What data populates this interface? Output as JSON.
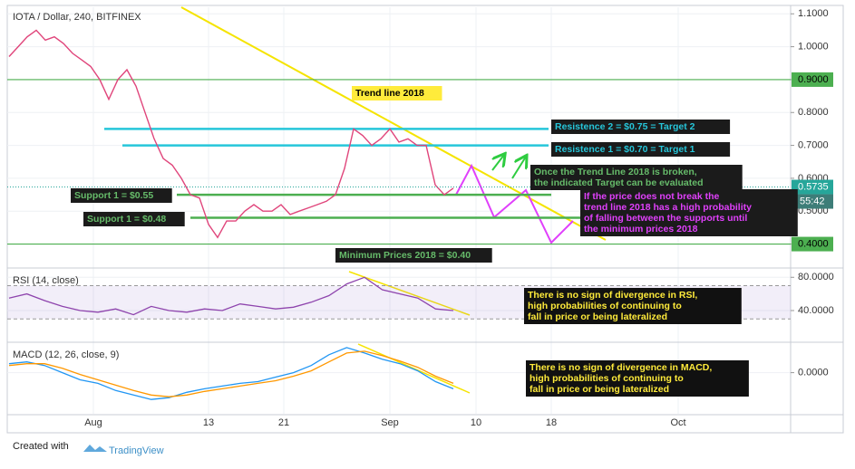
{
  "header": {
    "title": "IOTA / Dollar, 240, BITFINEX"
  },
  "chart_data": [
    {
      "type": "line",
      "color": "#e0457b",
      "values": [
        0.97,
        1.0,
        1.03,
        1.05,
        1.02,
        1.03,
        1.01,
        0.98,
        0.96,
        0.94,
        0.9,
        0.84,
        0.9,
        0.93,
        0.88,
        0.8,
        0.72,
        0.66,
        0.64,
        0.6,
        0.55,
        0.54,
        0.46,
        0.42,
        0.47,
        0.47,
        0.5,
        0.52,
        0.5,
        0.5,
        0.52,
        0.49,
        0.5,
        0.51,
        0.52,
        0.53,
        0.55,
        0.63,
        0.75,
        0.73,
        0.7,
        0.72,
        0.75,
        0.71,
        0.72,
        0.7,
        0.7,
        0.58,
        0.55,
        0.57
      ],
      "x_labels": [
        "Aug",
        "13",
        "21",
        "Sep",
        "10",
        "18",
        "Oct"
      ],
      "ylim": [
        0.33,
        1.12
      ],
      "yticks": [
        {
          "value": 1.1,
          "label": "1.1000"
        },
        {
          "value": 1.0,
          "label": "1.0000"
        },
        {
          "value": 0.9,
          "label": "0.9000"
        },
        {
          "value": 0.8,
          "label": "0.8000"
        },
        {
          "value": 0.7,
          "label": "0.7000"
        },
        {
          "value": 0.6,
          "label": "0.6000"
        },
        {
          "value": 0.5,
          "label": "0.5000"
        },
        {
          "value": 0.4,
          "label": "0.4000"
        }
      ],
      "grid": true,
      "levels": [
        {
          "value": 0.9,
          "color": "#4caf50",
          "tag": true
        },
        {
          "value": 0.75,
          "color": "#26c6da"
        },
        {
          "value": 0.7,
          "color": "#26c6da"
        },
        {
          "value": 0.55,
          "color": "#4caf50"
        },
        {
          "value": 0.48,
          "color": "#4caf50"
        },
        {
          "value": 0.4,
          "color": "#4caf50",
          "tag": true
        }
      ],
      "last_price": {
        "value": 0.5735,
        "label": "0.5735"
      },
      "countdown": "55:42",
      "annotations": [
        {
          "lines": [
            "Trend line 2018"
          ],
          "color": "#000000",
          "box": "#ffeb3b"
        },
        {
          "lines": [
            "Resistence 2 = $0.75 = Target 2"
          ],
          "color": "#26c6da",
          "box": "#1b1b1b"
        },
        {
          "lines": [
            "Resistence 1 = $0.70 = Target 1"
          ],
          "color": "#26c6da",
          "box": "#1b1b1b"
        },
        {
          "lines": [
            "Once the Trend Line 2018 is broken,",
            "the indicated Target can be evaluated"
          ],
          "color": "#66bb6a",
          "box": "#1b1b1b"
        },
        {
          "lines": [
            "Support 1 = $0.55"
          ],
          "color": "#66bb6a",
          "box": "#1b1b1b"
        },
        {
          "lines": [
            "Support 1 = $0.48"
          ],
          "color": "#66bb6a",
          "box": "#1b1b1b"
        },
        {
          "lines": [
            "If the price does not break the",
            "trend line 2018 has a high probability",
            "of falling between the supports until",
            "the minimum prices 2018"
          ],
          "color": "#e040fb",
          "box": "#1b1b1b"
        },
        {
          "lines": [
            "Minimum Prices 2018 = $0.40"
          ],
          "color": "#66bb6a",
          "box": "#1b1b1b"
        }
      ]
    },
    {
      "type": "line",
      "title": "RSI (14, close)",
      "color": "#8e44ad",
      "values": [
        55,
        60,
        52,
        45,
        40,
        38,
        42,
        35,
        45,
        40,
        38,
        42,
        40,
        48,
        45,
        42,
        44,
        50,
        58,
        72,
        80,
        65,
        60,
        55,
        42,
        40
      ],
      "ylim": [
        3,
        89
      ],
      "yticks": [
        {
          "value": 80,
          "label": "80.0000"
        },
        {
          "value": 40,
          "label": "40.0000"
        }
      ],
      "bands": [
        30,
        70
      ],
      "annotations": [
        {
          "lines": [
            "There is no sign of divergence in RSI,",
            "high probabilities of continuing to",
            "fall in price or being lateralized"
          ],
          "color": "#ffeb3b",
          "box": "#111111"
        }
      ]
    },
    {
      "type": "line",
      "title": "MACD (12, 26, close, 9)",
      "lines": [
        {
          "color": "#2196f3",
          "values": [
            0.01,
            0.012,
            0.008,
            0.0,
            -0.008,
            -0.012,
            -0.02,
            -0.025,
            -0.03,
            -0.028,
            -0.022,
            -0.018,
            -0.015,
            -0.012,
            -0.01,
            -0.005,
            0.0,
            0.008,
            0.02,
            0.028,
            0.022,
            0.015,
            0.01,
            0.002,
            -0.01,
            -0.018
          ]
        },
        {
          "color": "#ff9800",
          "values": [
            0.008,
            0.01,
            0.01,
            0.005,
            -0.002,
            -0.008,
            -0.014,
            -0.02,
            -0.025,
            -0.027,
            -0.025,
            -0.021,
            -0.018,
            -0.015,
            -0.012,
            -0.009,
            -0.004,
            0.002,
            0.012,
            0.022,
            0.024,
            0.019,
            0.013,
            0.006,
            -0.004,
            -0.012
          ]
        }
      ],
      "ylim": [
        -0.046,
        0.032
      ],
      "yticks": [
        {
          "value": 0,
          "label": "0.0000"
        }
      ],
      "annotations": [
        {
          "lines": [
            "There is no sign of divergence in MACD,",
            "high probabilities of continuing to",
            "fall in price or being lateralized"
          ],
          "color": "#ffeb3b",
          "box": "#111111"
        }
      ]
    }
  ],
  "footer": {
    "created_with": "Created with",
    "brand": "TradingView"
  }
}
